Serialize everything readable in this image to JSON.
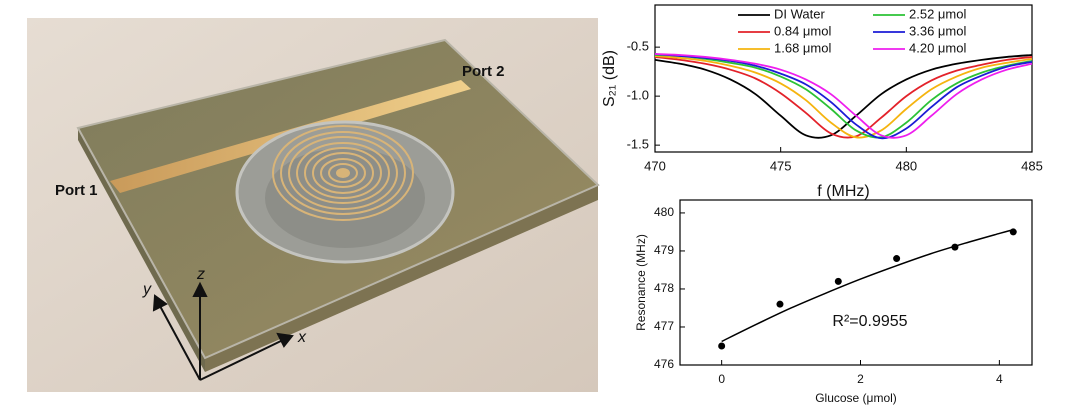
{
  "illustration": {
    "labels": {
      "port1": "Port 1",
      "port2": "Port 2",
      "x": "x",
      "y": "y",
      "z": "z"
    }
  },
  "chart_data": [
    {
      "type": "line",
      "y_label": "S₂₁ (dB)",
      "x_label": "f (MHz)",
      "x": [
        470,
        471,
        472,
        473,
        474,
        475,
        476,
        477,
        478,
        479,
        480,
        481,
        482,
        483,
        484,
        485
      ],
      "xlim": [
        470,
        485
      ],
      "xticks": [
        470,
        475,
        480,
        485
      ],
      "ylim": [
        -1.57,
        -0.07
      ],
      "yticks": [
        -1.5,
        {
          "value": -1.0,
          "label": "-1.0"
        },
        -0.5
      ],
      "series": [
        {
          "name": "DI Water",
          "color": "#000000",
          "values": [
            -0.63,
            -0.67,
            -0.73,
            -0.83,
            -0.98,
            -1.2,
            -1.4,
            -1.4,
            -1.2,
            -0.98,
            -0.83,
            -0.73,
            -0.67,
            -0.63,
            -0.6,
            -0.58
          ]
        },
        {
          "name": "0.84 μmol",
          "color": "#e3222a",
          "values": [
            -0.6,
            -0.63,
            -0.67,
            -0.73,
            -0.82,
            -0.97,
            -1.17,
            -1.38,
            -1.41,
            -1.22,
            -1.0,
            -0.84,
            -0.74,
            -0.68,
            -0.63,
            -0.6
          ]
        },
        {
          "name": "1.68 μmol",
          "color": "#f5b40f",
          "values": [
            -0.59,
            -0.61,
            -0.64,
            -0.69,
            -0.76,
            -0.87,
            -1.04,
            -1.27,
            -1.42,
            -1.35,
            -1.13,
            -0.93,
            -0.8,
            -0.71,
            -0.66,
            -0.62
          ]
        },
        {
          "name": "2.52 μmol",
          "color": "#2cc236",
          "values": [
            -0.58,
            -0.59,
            -0.62,
            -0.66,
            -0.71,
            -0.8,
            -0.93,
            -1.13,
            -1.35,
            -1.42,
            -1.27,
            -1.04,
            -0.87,
            -0.76,
            -0.69,
            -0.64
          ]
        },
        {
          "name": "3.36 μmol",
          "color": "#1c1cd6",
          "values": [
            -0.57,
            -0.59,
            -0.61,
            -0.64,
            -0.69,
            -0.77,
            -0.88,
            -1.06,
            -1.29,
            -1.43,
            -1.33,
            -1.11,
            -0.91,
            -0.79,
            -0.7,
            -0.65
          ]
        },
        {
          "name": "4.20 μmol",
          "color": "#ee1eee",
          "values": [
            -0.57,
            -0.58,
            -0.6,
            -0.63,
            -0.67,
            -0.73,
            -0.83,
            -0.98,
            -1.2,
            -1.4,
            -1.4,
            -1.2,
            -0.98,
            -0.83,
            -0.73,
            -0.67
          ]
        }
      ]
    },
    {
      "type": "scatter",
      "y_label": "Resonance (MHz)",
      "x_label": "Glucose (μmol)",
      "annotation": "R²=0.9955",
      "color": "#000000",
      "x": [
        0,
        0.84,
        1.68,
        2.52,
        3.36,
        4.2
      ],
      "values": [
        476.5,
        477.6,
        478.2,
        478.8,
        479.1,
        479.5
      ],
      "fit": {
        "x": [
          0,
          0.5,
          1,
          1.5,
          2,
          2.5,
          3,
          3.5,
          4,
          4.2
        ],
        "values": [
          476.62,
          477.07,
          477.5,
          477.89,
          478.26,
          478.6,
          478.92,
          479.2,
          479.46,
          479.56
        ]
      },
      "xlim": [
        -0.6,
        4.47
      ],
      "xticks": [
        0,
        2,
        4
      ],
      "ylim": [
        476,
        480.34
      ],
      "yticks": [
        476,
        477,
        478,
        479,
        480
      ]
    }
  ]
}
